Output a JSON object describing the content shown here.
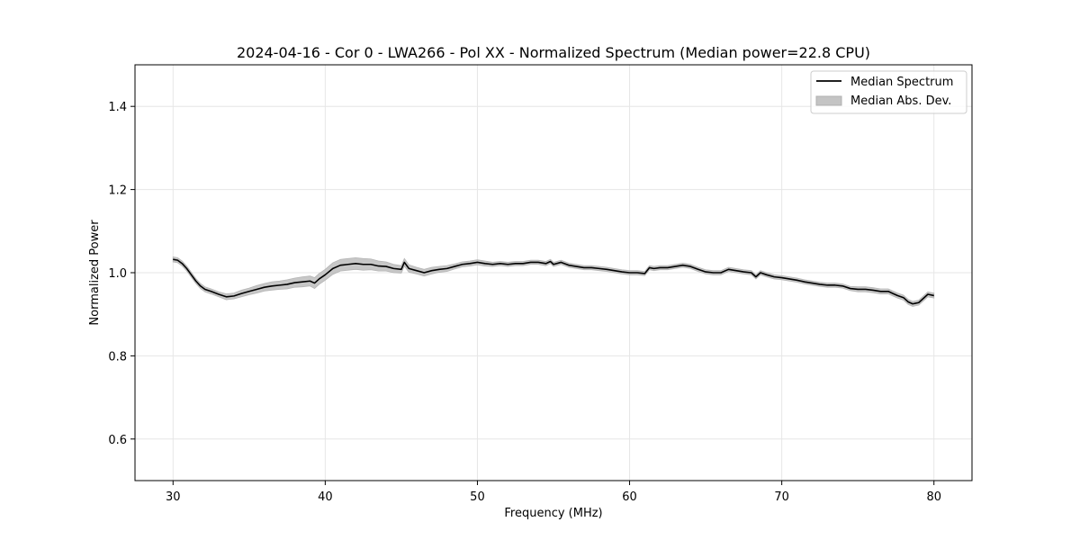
{
  "chart_data": {
    "type": "line",
    "title": "2024-04-16 - Cor 0 - LWA266 - Pol XX - Normalized Spectrum (Median power=22.8 CPU)",
    "xlabel": "Frequency (MHz)",
    "ylabel": "Normalized Power",
    "xlim": [
      27.5,
      82.5
    ],
    "ylim": [
      0.5,
      1.5
    ],
    "xticks": [
      30,
      40,
      50,
      60,
      70,
      80
    ],
    "xtick_labels": [
      "30",
      "40",
      "50",
      "60",
      "70",
      "80"
    ],
    "yticks": [
      0.6,
      0.8,
      1.0,
      1.2,
      1.4
    ],
    "ytick_labels": [
      "0.6",
      "0.8",
      "1.0",
      "1.2",
      "1.4"
    ],
    "grid": true,
    "legend_position": "top-right",
    "legend": [
      "Median Spectrum",
      "Median Abs. Dev."
    ],
    "series": [
      {
        "name": "Median Spectrum",
        "kind": "line",
        "color": "#000000",
        "x": [
          30.0,
          30.3,
          30.6,
          30.9,
          31.2,
          31.5,
          31.8,
          32.1,
          32.5,
          33.0,
          33.5,
          34.0,
          34.5,
          35.0,
          35.5,
          36.0,
          36.5,
          37.0,
          37.5,
          38.0,
          38.5,
          39.0,
          39.3,
          39.6,
          40.0,
          40.5,
          41.0,
          41.5,
          42.0,
          42.5,
          43.0,
          43.5,
          44.0,
          44.5,
          45.0,
          45.2,
          45.5,
          46.0,
          46.5,
          47.0,
          47.5,
          48.0,
          48.5,
          49.0,
          49.5,
          50.0,
          50.5,
          51.0,
          51.5,
          52.0,
          52.5,
          53.0,
          53.5,
          54.0,
          54.5,
          54.8,
          55.0,
          55.5,
          56.0,
          56.5,
          57.0,
          57.5,
          58.0,
          58.5,
          59.0,
          59.5,
          60.0,
          60.5,
          61.0,
          61.3,
          61.6,
          62.0,
          62.5,
          63.0,
          63.5,
          64.0,
          64.5,
          65.0,
          65.5,
          66.0,
          66.5,
          67.0,
          67.5,
          68.0,
          68.3,
          68.6,
          69.0,
          69.5,
          70.0,
          70.5,
          71.0,
          71.5,
          72.0,
          72.5,
          73.0,
          73.5,
          74.0,
          74.5,
          75.0,
          75.5,
          76.0,
          76.5,
          77.0,
          77.3,
          77.6,
          78.0,
          78.3,
          78.6,
          79.0,
          79.3,
          79.6,
          80.0
        ],
        "values": [
          1.032,
          1.03,
          1.022,
          1.01,
          0.995,
          0.98,
          0.968,
          0.96,
          0.955,
          0.948,
          0.942,
          0.944,
          0.95,
          0.955,
          0.96,
          0.965,
          0.968,
          0.97,
          0.972,
          0.976,
          0.978,
          0.98,
          0.975,
          0.985,
          0.995,
          1.01,
          1.018,
          1.02,
          1.022,
          1.02,
          1.02,
          1.016,
          1.015,
          1.01,
          1.008,
          1.025,
          1.01,
          1.005,
          1.0,
          1.005,
          1.008,
          1.01,
          1.015,
          1.02,
          1.022,
          1.025,
          1.022,
          1.02,
          1.022,
          1.02,
          1.022,
          1.022,
          1.025,
          1.025,
          1.022,
          1.027,
          1.02,
          1.025,
          1.018,
          1.015,
          1.012,
          1.012,
          1.01,
          1.008,
          1.005,
          1.002,
          1.0,
          1.0,
          0.998,
          1.012,
          1.01,
          1.012,
          1.012,
          1.015,
          1.018,
          1.015,
          1.008,
          1.002,
          1.0,
          1.0,
          1.008,
          1.005,
          1.002,
          1.0,
          0.99,
          1.0,
          0.995,
          0.99,
          0.988,
          0.985,
          0.982,
          0.978,
          0.975,
          0.972,
          0.97,
          0.97,
          0.968,
          0.962,
          0.96,
          0.96,
          0.958,
          0.955,
          0.955,
          0.95,
          0.945,
          0.94,
          0.93,
          0.925,
          0.928,
          0.938,
          0.948,
          0.945
        ]
      },
      {
        "name": "Median Abs. Dev.",
        "kind": "band",
        "color": "#bdbdbd",
        "half_width": [
          0.006,
          0.006,
          0.006,
          0.006,
          0.006,
          0.006,
          0.006,
          0.006,
          0.006,
          0.006,
          0.007,
          0.007,
          0.008,
          0.008,
          0.009,
          0.009,
          0.01,
          0.01,
          0.011,
          0.011,
          0.012,
          0.012,
          0.013,
          0.013,
          0.013,
          0.014,
          0.014,
          0.014,
          0.014,
          0.014,
          0.013,
          0.012,
          0.011,
          0.01,
          0.009,
          0.009,
          0.009,
          0.008,
          0.008,
          0.008,
          0.007,
          0.007,
          0.006,
          0.006,
          0.006,
          0.006,
          0.006,
          0.005,
          0.005,
          0.005,
          0.005,
          0.005,
          0.005,
          0.005,
          0.005,
          0.005,
          0.005,
          0.005,
          0.005,
          0.005,
          0.005,
          0.005,
          0.005,
          0.005,
          0.005,
          0.005,
          0.005,
          0.005,
          0.005,
          0.005,
          0.005,
          0.005,
          0.005,
          0.005,
          0.005,
          0.005,
          0.005,
          0.005,
          0.005,
          0.005,
          0.005,
          0.005,
          0.005,
          0.005,
          0.005,
          0.005,
          0.005,
          0.005,
          0.005,
          0.005,
          0.005,
          0.005,
          0.005,
          0.005,
          0.005,
          0.005,
          0.005,
          0.005,
          0.006,
          0.006,
          0.006,
          0.006,
          0.006,
          0.006,
          0.006,
          0.006,
          0.006,
          0.006,
          0.006,
          0.006,
          0.006,
          0.006
        ]
      }
    ]
  }
}
